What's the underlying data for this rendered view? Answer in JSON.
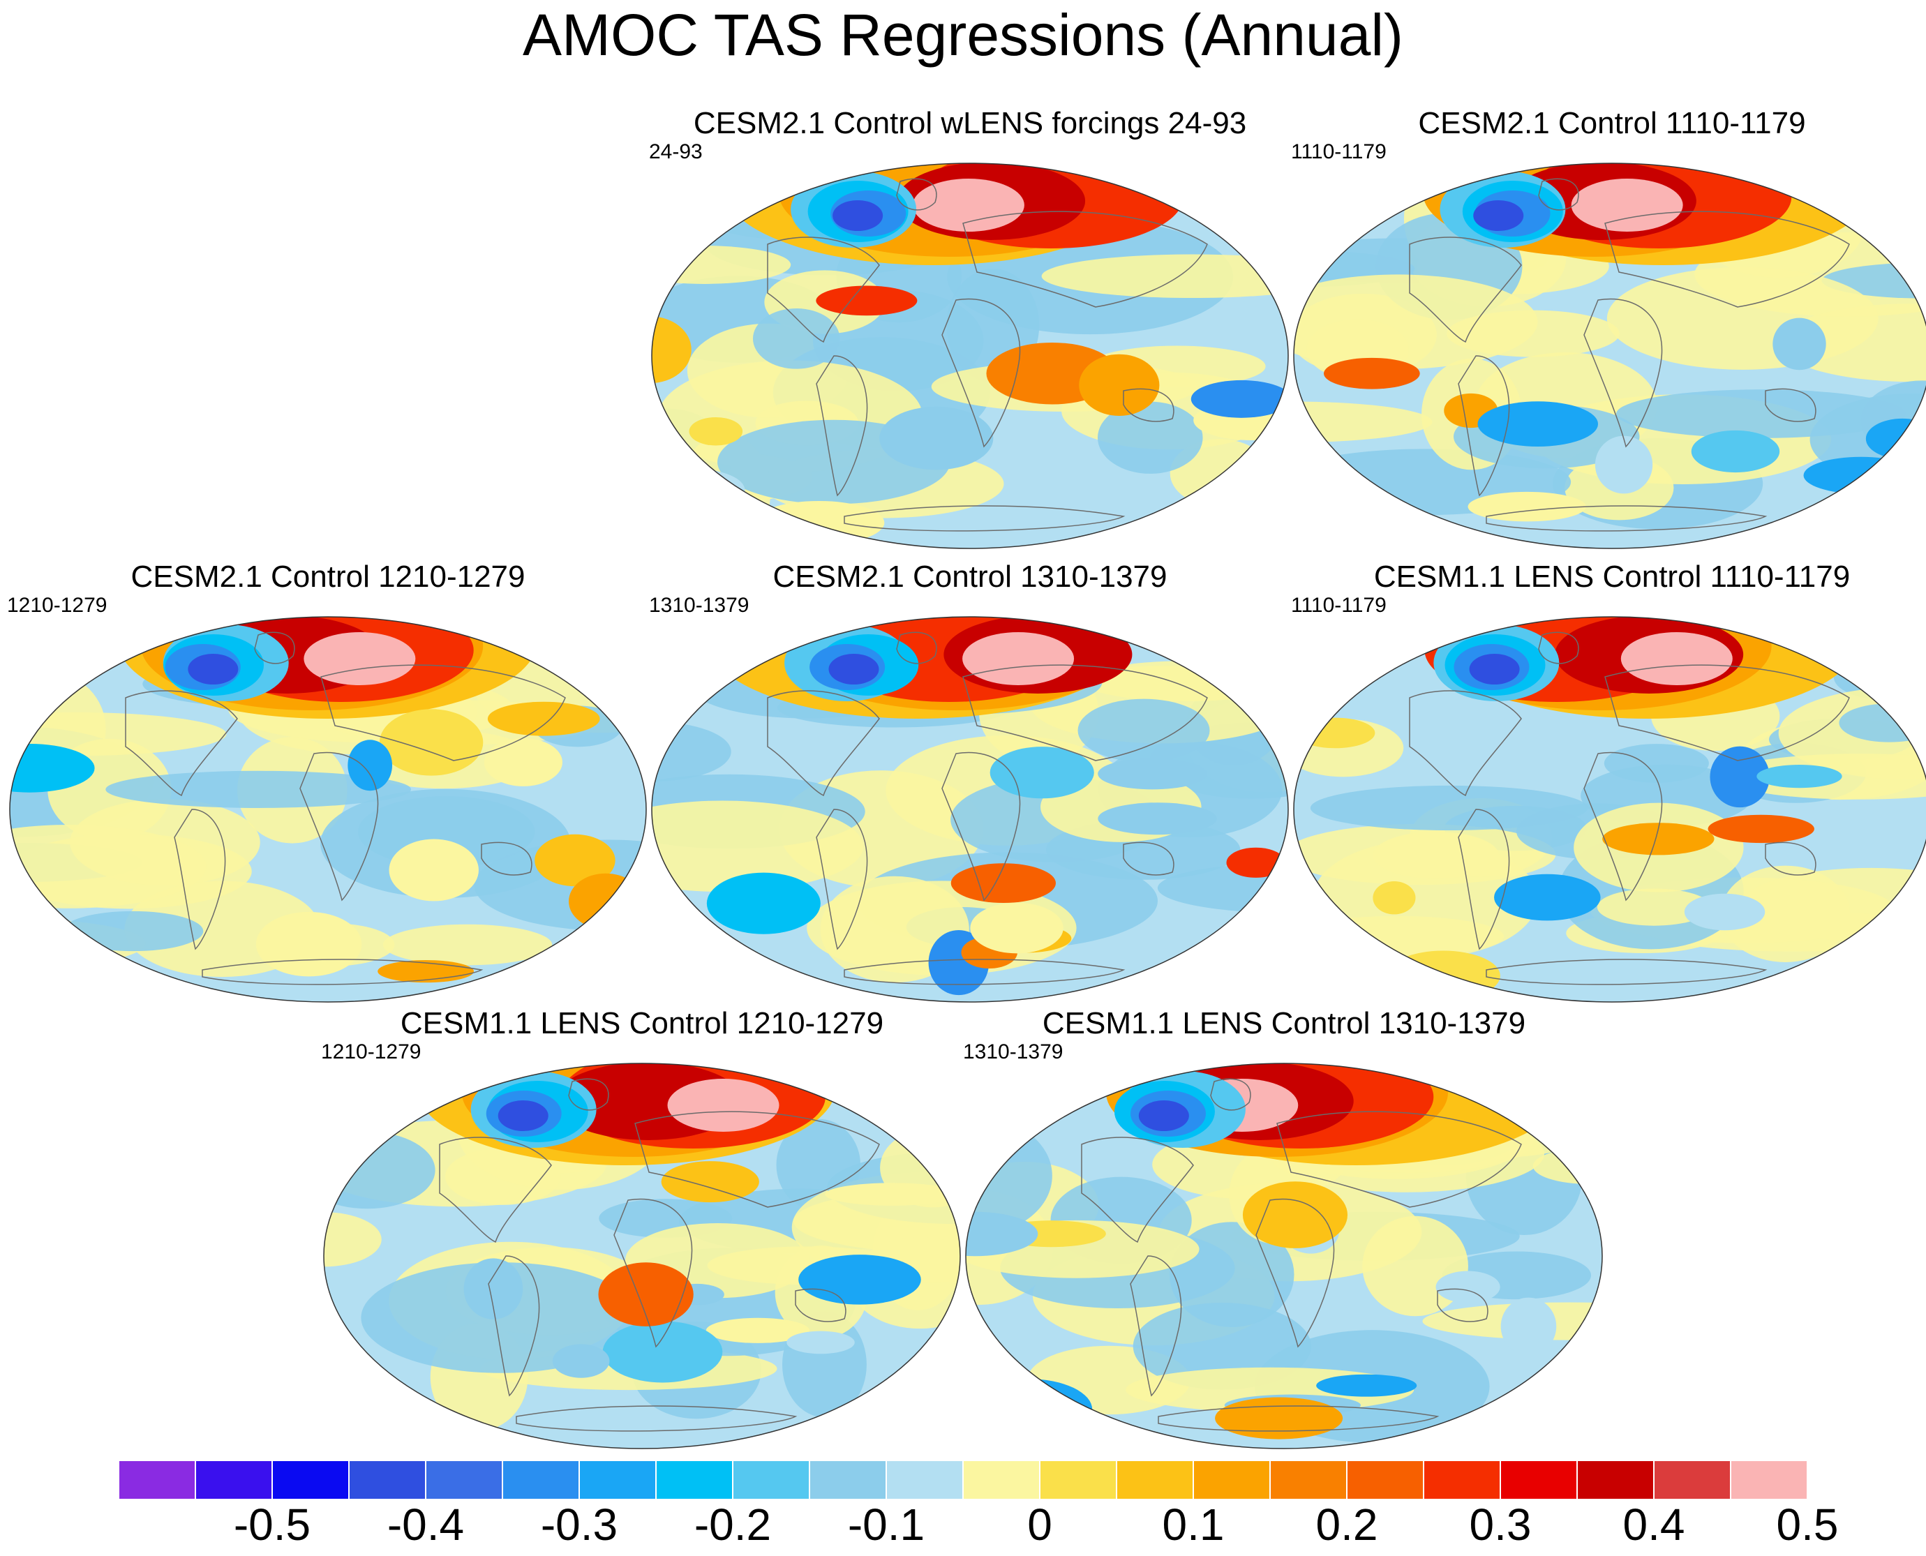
{
  "title": "AMOC TAS Regressions (Annual)",
  "projection": "Robinson-like elliptical global map",
  "panels": [
    {
      "title": "CESM2.1 Control wLENS forcings 24-93",
      "period": "24-93"
    },
    {
      "title": "CESM2.1 Control 1110-1179",
      "period": "1110-1179"
    },
    {
      "title": "CESM2.1 Control 1210-1279",
      "period": "1210-1279"
    },
    {
      "title": "CESM2.1 Control 1310-1379",
      "period": "1310-1379"
    },
    {
      "title": "CESM1.1 LENS Control 1110-1179",
      "period": "1110-1179"
    },
    {
      "title": "CESM1.1 LENS Control 1210-1279",
      "period": "1210-1279"
    },
    {
      "title": "CESM1.1 LENS Control 1310-1379",
      "period": "1310-1379"
    }
  ],
  "colorbar": {
    "ticks": [
      "-0.5",
      "-0.4",
      "-0.3",
      "-0.2",
      "-0.1",
      "0",
      "0.1",
      "0.2",
      "0.3",
      "0.4",
      "0.5"
    ],
    "colors": [
      "#8a2be2",
      "#3a10ee",
      "#0a0af2",
      "#2f4fe0",
      "#3a6ee6",
      "#2a8ff0",
      "#1aa6f5",
      "#00c0f5",
      "#55c8f0",
      "#8ccdeb",
      "#b3dff2",
      "#fbf6a0",
      "#fae04a",
      "#fcc216",
      "#fba300",
      "#f98000",
      "#f76000",
      "#f52e00",
      "#e80000",
      "#c80000",
      "#db3c3c",
      "#fab4b4"
    ]
  }
}
